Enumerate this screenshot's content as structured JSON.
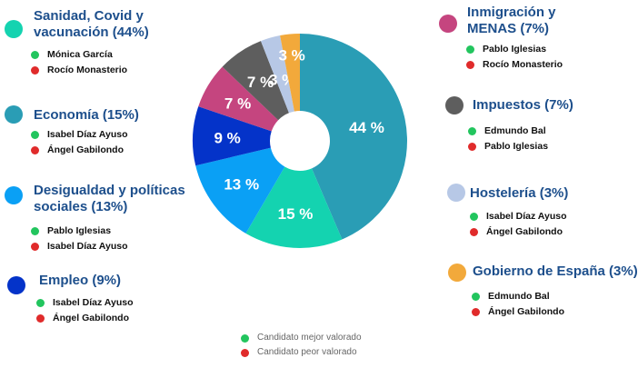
{
  "chart_data": {
    "type": "pie",
    "donut": true,
    "slices": [
      {
        "label": "44 %",
        "value": 44,
        "color": "#2a9db5"
      },
      {
        "label": "15 %",
        "value": 15,
        "color": "#14d3b0"
      },
      {
        "label": "13 %",
        "value": 13,
        "color": "#0aa0f5"
      },
      {
        "label": "9 %",
        "value": 9,
        "color": "#0433c9"
      },
      {
        "label": "7 %",
        "value": 7,
        "color": "#c5457f"
      },
      {
        "label": "7 %",
        "value": 7,
        "color": "#5e5e5e"
      },
      {
        "label": "3 %",
        "value": 3,
        "color": "#b7c8e6"
      },
      {
        "label": "3 %",
        "value": 3,
        "color": "#f2a93b"
      }
    ]
  },
  "categories": [
    {
      "title": [
        "Sanidad, Covid y",
        "vacunación (44%)"
      ],
      "color": "#14d3b0",
      "best": "Mónica García",
      "worst": "Rocío Monasterio"
    },
    {
      "title": [
        "Economía (15%)"
      ],
      "color": "#2a9db5",
      "best": "Isabel Díaz Ayuso",
      "worst": "Ángel Gabilondo"
    },
    {
      "title": [
        "Desigualdad y políticas",
        "sociales (13%)"
      ],
      "color": "#0aa0f5",
      "best": "Pablo Iglesias",
      "worst": "Isabel Díaz Ayuso"
    },
    {
      "title": [
        "Empleo (9%)"
      ],
      "color": "#0433c9",
      "best": "Isabel Díaz Ayuso",
      "worst": "Ángel Gabilondo"
    },
    {
      "title": [
        "Inmigración y",
        "MENAS (7%)"
      ],
      "color": "#c5457f",
      "best": "Pablo Iglesias",
      "worst": "Rocío Monasterio"
    },
    {
      "title": [
        "Impuestos (7%)"
      ],
      "color": "#5e5e5e",
      "best": "Edmundo Bal",
      "worst": "Pablo Iglesias"
    },
    {
      "title": [
        "Hostelería (3%)"
      ],
      "color": "#b7c8e6",
      "best": "Isabel Díaz Ayuso",
      "worst": "Ángel Gabilondo"
    },
    {
      "title": [
        "Gobierno de España (3%)"
      ],
      "color": "#f2a93b",
      "best": "Edmundo Bal",
      "worst": "Ángel Gabilondo"
    }
  ],
  "legend": {
    "best_label": "Candidato mejor valorado",
    "worst_label": "Candidato peor valorado",
    "best_color": "#22c55e",
    "worst_color": "#e02b2b"
  }
}
